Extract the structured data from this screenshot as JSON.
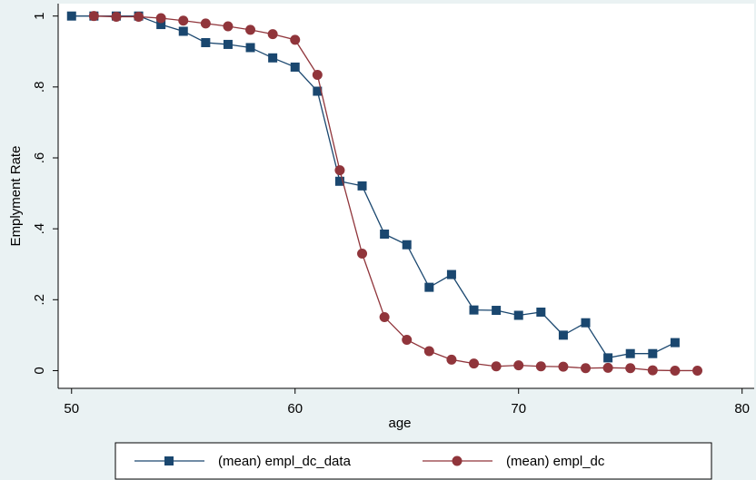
{
  "chart_data": {
    "type": "line",
    "xlabel": "age",
    "ylabel": "Emplyment Rate",
    "xlim": [
      49.4,
      80.5
    ],
    "xticks": [
      50,
      60,
      70,
      80
    ],
    "ylim": [
      -0.05,
      1.035
    ],
    "yticks": [
      0,
      {
        "value": 0.2,
        "label": ".2"
      },
      {
        "value": 0.4,
        "label": ".4"
      },
      {
        "value": 0.6,
        "label": ".6"
      },
      {
        "value": 0.8,
        "label": ".8"
      },
      1
    ],
    "grid": false,
    "legend": "bottom",
    "series": [
      {
        "name": "(mean) empl_dc_data",
        "color": "#1a476f",
        "marker": "square",
        "x": [
          50,
          51,
          52,
          53,
          54,
          55,
          56,
          57,
          58,
          59,
          60,
          61,
          62,
          63,
          64,
          65,
          66,
          67,
          68,
          69,
          70,
          71,
          72,
          73,
          74,
          75,
          76,
          77
        ],
        "values": [
          1.0,
          1.0,
          1.0,
          1.0,
          0.976,
          0.957,
          0.925,
          0.92,
          0.911,
          0.882,
          0.856,
          0.788,
          0.534,
          0.521,
          0.385,
          0.355,
          0.235,
          0.271,
          0.171,
          0.17,
          0.156,
          0.165,
          0.1,
          0.135,
          0.036,
          0.048,
          0.048,
          0.079
        ]
      },
      {
        "name": "(mean) empl_dc",
        "color": "#90353b",
        "marker": "circle",
        "x": [
          51,
          52,
          53,
          54,
          55,
          56,
          57,
          58,
          59,
          60,
          61,
          62,
          63,
          64,
          65,
          66,
          67,
          68,
          69,
          70,
          71,
          72,
          73,
          74,
          75,
          76,
          77,
          78
        ],
        "values": [
          1.0,
          0.998,
          0.998,
          0.994,
          0.987,
          0.979,
          0.971,
          0.961,
          0.949,
          0.933,
          0.834,
          0.565,
          0.33,
          0.151,
          0.087,
          0.055,
          0.031,
          0.02,
          0.012,
          0.015,
          0.012,
          0.011,
          0.007,
          0.008,
          0.007,
          0.001,
          0.0,
          0.0
        ]
      }
    ]
  }
}
